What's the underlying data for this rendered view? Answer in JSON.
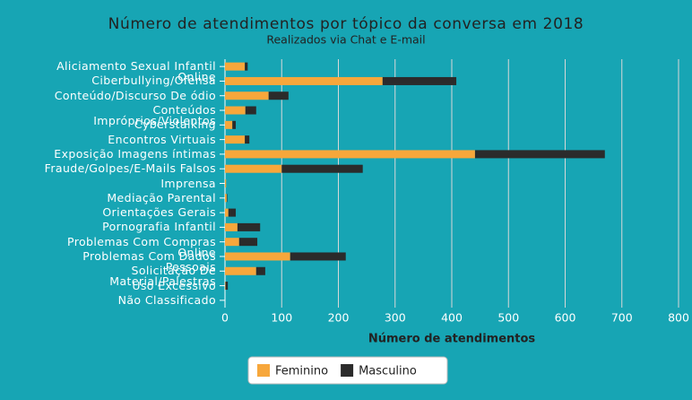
{
  "chart_data": {
    "type": "stacked-bar-horizontal",
    "title": "Número de atendimentos por tópico da conversa em 2018",
    "subtitle": "Realizados via Chat e E-mail",
    "x_label": "Número de atendimentos",
    "categories": [
      "Aliciamento Sexual Infantil Online",
      "Ciberbullying/Ofensa",
      "Conteúdo/Discurso De ódio",
      "Conteúdos Impróprios/Violentos",
      "Cyberstalking",
      "Encontros Virtuais",
      "Exposição Imagens íntimas",
      "Fraude/Golpes/E-Mails Falsos",
      "Imprensa",
      "Mediação Parental",
      "Orientações Gerais",
      "Pornografia Infantil",
      "Problemas Com Compras Online",
      "Problemas Com Dados Pessoais",
      "Solicitação De Material/Palestras",
      "Uso Excessivo",
      "Não Classificado"
    ],
    "series": [
      {
        "name": "Feminino",
        "color": "#f7a73b",
        "values": [
          35,
          278,
          77,
          36,
          13,
          35,
          441,
          100,
          2,
          3,
          6,
          22,
          25,
          115,
          55,
          1,
          0
        ]
      },
      {
        "name": "Masculino",
        "color": "#2b2b2b",
        "values": [
          5,
          130,
          35,
          19,
          6,
          8,
          229,
          143,
          0,
          1,
          13,
          40,
          32,
          98,
          16,
          4,
          0
        ]
      }
    ],
    "xlim": [
      0,
      800
    ],
    "xticks": [
      0,
      100,
      200,
      300,
      400,
      500,
      600,
      700,
      800
    ],
    "grid": true,
    "legend": "bottom"
  }
}
